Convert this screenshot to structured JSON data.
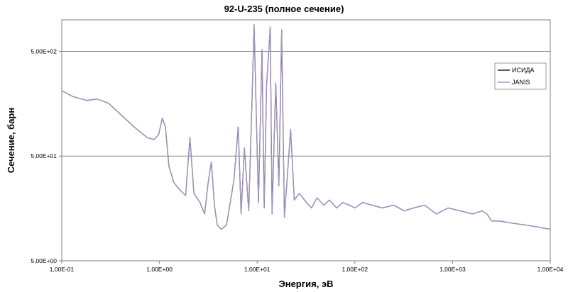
{
  "chart_data": {
    "type": "line",
    "title": "92-U-235 (полное сечение)",
    "xlabel": "Энергия, эВ",
    "ylabel": "Сечение, барн",
    "x_scale": "log",
    "y_scale": "log",
    "xlim": [
      0.1,
      10000
    ],
    "ylim": [
      5,
      1000
    ],
    "x_ticks": [
      0.1,
      1,
      10,
      100,
      1000,
      10000
    ],
    "x_tick_labels": [
      "1,00E-01",
      "1,00E+00",
      "1,00E+01",
      "1,00E+02",
      "1,00E+03",
      "1,00E+04"
    ],
    "y_ticks": [
      5,
      50,
      500
    ],
    "y_tick_labels": [
      "5,00E+00",
      "5,00E+01",
      "5,00E+02"
    ],
    "grid": "horizontal",
    "legend": "right",
    "series": [
      {
        "name": "ИСИДА",
        "color": "#2b1f4a",
        "x": [
          0.1,
          0.13,
          0.18,
          0.23,
          0.3,
          0.4,
          0.55,
          0.75,
          0.88,
          0.98,
          1.07,
          1.15,
          1.25,
          1.4,
          1.6,
          1.85,
          2.05,
          2.25,
          2.6,
          2.9,
          3.15,
          3.4,
          3.65,
          3.9,
          4.3,
          4.85,
          5.3,
          5.8,
          6.4,
          6.85,
          7.4,
          8.2,
          8.8,
          9.3,
          10.3,
          11.2,
          11.8,
          12.5,
          13.6,
          14.2,
          15.5,
          16.7,
          17.8,
          19.0,
          20.5,
          22.0,
          24.0,
          27.0,
          32.0,
          36.0,
          41.0,
          48.0,
          55.0,
          65.0,
          75.0,
          88.0,
          100.0,
          120.0,
          150.0,
          190.0,
          250.0,
          320.0,
          400.0,
          520.0,
          680.0,
          900.0,
          1200.0,
          1600.0,
          2000.0,
          2250.0,
          2500.0,
          3000.0,
          4000.0,
          5500.0,
          7500.0,
          10000.0
        ],
        "y": [
          210,
          185,
          170,
          175,
          160,
          125,
          95,
          75,
          72,
          80,
          115,
          95,
          40,
          28,
          24,
          21,
          75,
          22,
          18,
          14,
          28,
          44,
          17,
          11,
          10,
          11,
          18,
          30,
          95,
          14,
          60,
          15,
          140,
          900,
          18,
          520,
          16,
          240,
          850,
          14,
          250,
          26,
          800,
          13,
          35,
          90,
          19,
          22,
          18,
          16,
          20,
          17,
          19,
          16,
          18,
          17,
          16,
          18,
          17,
          16,
          17,
          15,
          16,
          17,
          14,
          16,
          15,
          14,
          15,
          14,
          12,
          12,
          11.5,
          11,
          10.5,
          10
        ]
      },
      {
        "name": "JANIS",
        "color": "#a899c6",
        "x": [
          0.1,
          0.13,
          0.18,
          0.23,
          0.3,
          0.4,
          0.55,
          0.75,
          0.88,
          0.98,
          1.07,
          1.15,
          1.25,
          1.4,
          1.6,
          1.85,
          2.05,
          2.25,
          2.6,
          2.9,
          3.15,
          3.4,
          3.65,
          3.9,
          4.3,
          4.85,
          5.3,
          5.8,
          6.4,
          6.85,
          7.4,
          8.2,
          8.8,
          9.3,
          10.3,
          11.2,
          11.8,
          12.5,
          13.6,
          14.2,
          15.5,
          16.7,
          17.8,
          19.0,
          20.5,
          22.0,
          24.0,
          27.0,
          32.0,
          36.0,
          41.0,
          48.0,
          55.0,
          65.0,
          75.0,
          88.0,
          100.0,
          120.0,
          150.0,
          190.0,
          250.0,
          320.0,
          400.0,
          520.0,
          680.0,
          900.0,
          1200.0,
          1600.0,
          2000.0,
          2250.0,
          2500.0,
          3000.0,
          4000.0,
          5500.0,
          7500.0,
          10000.0
        ],
        "y": [
          210,
          185,
          170,
          175,
          160,
          125,
          95,
          75,
          72,
          80,
          115,
          95,
          40,
          28,
          24,
          21,
          75,
          22,
          18,
          14,
          28,
          44,
          17,
          11,
          10,
          11,
          18,
          30,
          95,
          14,
          60,
          15,
          140,
          900,
          18,
          520,
          16,
          240,
          850,
          14,
          250,
          26,
          800,
          13,
          35,
          90,
          19,
          22,
          18,
          16,
          20,
          17,
          19,
          16,
          18,
          17,
          16,
          18,
          17,
          16,
          17,
          15,
          16,
          17,
          14,
          16,
          15,
          14,
          15,
          14,
          12,
          12,
          11.5,
          11,
          10.5,
          10
        ]
      }
    ]
  }
}
